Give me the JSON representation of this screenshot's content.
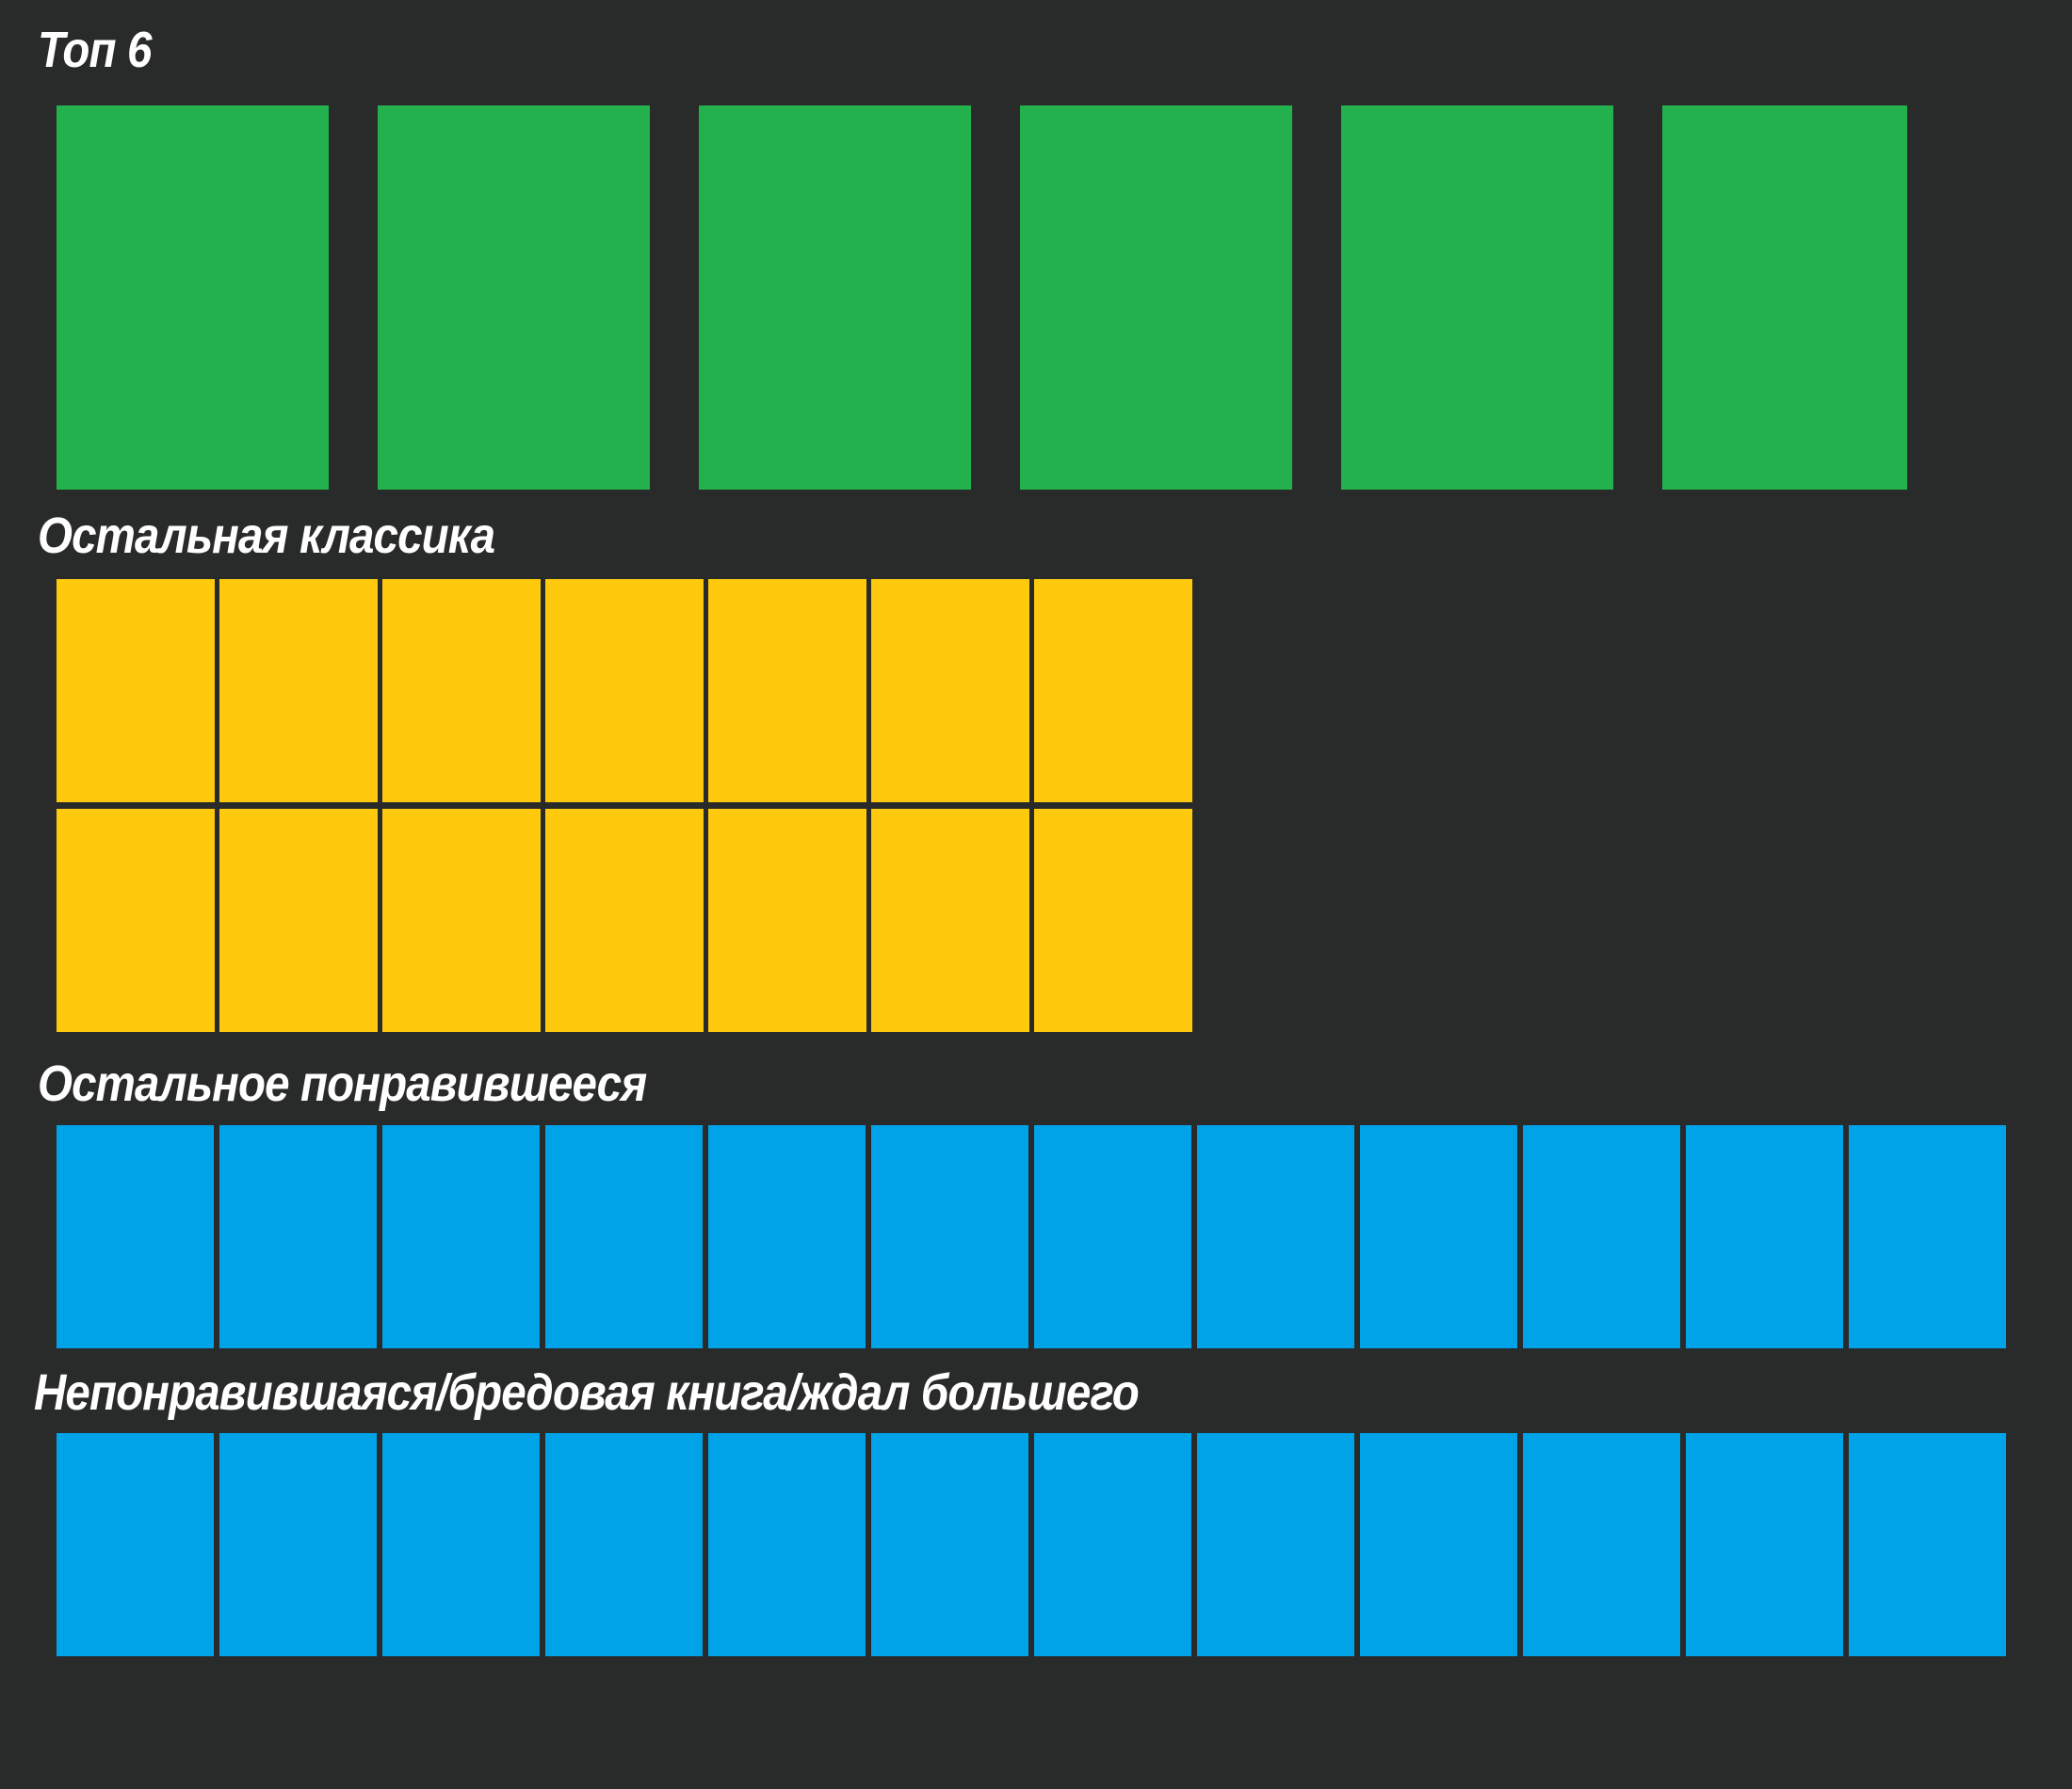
{
  "page": {
    "background_color": "#292b2b",
    "title_color": "#ffffff"
  },
  "sections": [
    {
      "id": "top6",
      "title": "Топ 6",
      "tile_color": "#22b14c",
      "tile_count": 6,
      "rows": [
        6
      ]
    },
    {
      "id": "classics",
      "title": "Остальная классика",
      "tile_color": "#ffc90e",
      "tile_count": 14,
      "rows": [
        7,
        7
      ]
    },
    {
      "id": "liked",
      "title": "Остальное понравившееся",
      "tile_color": "#00a2e8",
      "tile_count": 12,
      "rows": [
        12
      ]
    },
    {
      "id": "disliked",
      "title": "Непонравившаяся/бредовая книга/ждал большего",
      "tile_color": "#00a2e8",
      "tile_count": 12,
      "rows": [
        12
      ]
    }
  ]
}
